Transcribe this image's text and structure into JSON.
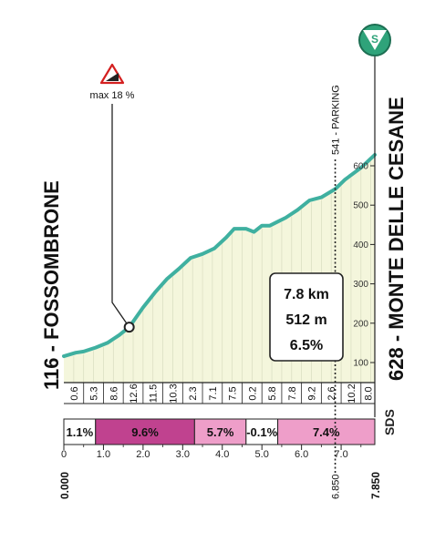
{
  "start": {
    "label": "116 - FOSSOMBRONE",
    "km": "0.000"
  },
  "finish": {
    "label": "628 - MONTE DELLE CESANE",
    "km": "7.850",
    "badge_letter": "S"
  },
  "parking": {
    "label": "541 - PARKING",
    "km": "6.850",
    "elev": 541
  },
  "max_gradient": {
    "label": "max 18 %",
    "km": 1.65
  },
  "climb_summary": {
    "length": "7.8 km",
    "gain": "512 m",
    "avg": "6.5%"
  },
  "sds_label": "SDS",
  "colors": {
    "profile_line": "#3fb0a0",
    "fill": "#f4f6dc",
    "pink_dark": "#c0428f",
    "pink_light": "#ee9ec9",
    "badge": "#2fa37a"
  },
  "chart_data": {
    "type": "area",
    "xlabel": "",
    "ylabel": "",
    "xlim": [
      0,
      7.85
    ],
    "ylim": [
      100,
      650
    ],
    "elevation_ticks": [
      "100",
      "200",
      "300",
      "400",
      "500",
      "600"
    ],
    "km_ticks": [
      "0",
      "1.0",
      "2.0",
      "3.0",
      "4.0",
      "5.0",
      "6.0",
      "7.0"
    ],
    "profile": {
      "x": [
        0,
        0.3,
        0.5,
        0.8,
        1.1,
        1.4,
        1.65,
        2.0,
        2.3,
        2.6,
        2.9,
        3.2,
        3.5,
        3.8,
        4.1,
        4.3,
        4.6,
        4.8,
        5.0,
        5.2,
        5.4,
        5.6,
        5.9,
        6.2,
        6.5,
        6.85,
        7.1,
        7.5,
        7.85
      ],
      "y": [
        116,
        125,
        128,
        138,
        150,
        170,
        190,
        240,
        278,
        312,
        338,
        366,
        376,
        390,
        418,
        440,
        440,
        432,
        448,
        448,
        458,
        468,
        488,
        512,
        520,
        541,
        565,
        595,
        628
      ]
    },
    "segment_gradients": [
      "0.6",
      "5.3",
      "8.6",
      "12.6",
      "11.5",
      "10.3",
      "2.3",
      "7.1",
      "7.5",
      "0.2",
      "5.8",
      "7.8",
      "9.2",
      "2.6",
      "10.2",
      "8.0"
    ],
    "section_bands": [
      {
        "from": 0.0,
        "to": 0.8,
        "label": "1.1%",
        "color": "white"
      },
      {
        "from": 0.8,
        "to": 3.3,
        "label": "9.6%",
        "color": "dark"
      },
      {
        "from": 3.3,
        "to": 4.6,
        "label": "5.7%",
        "color": "light"
      },
      {
        "from": 4.6,
        "to": 5.4,
        "label": "-0.1%",
        "color": "white"
      },
      {
        "from": 5.4,
        "to": 7.85,
        "label": "7.4%",
        "color": "light"
      }
    ]
  }
}
